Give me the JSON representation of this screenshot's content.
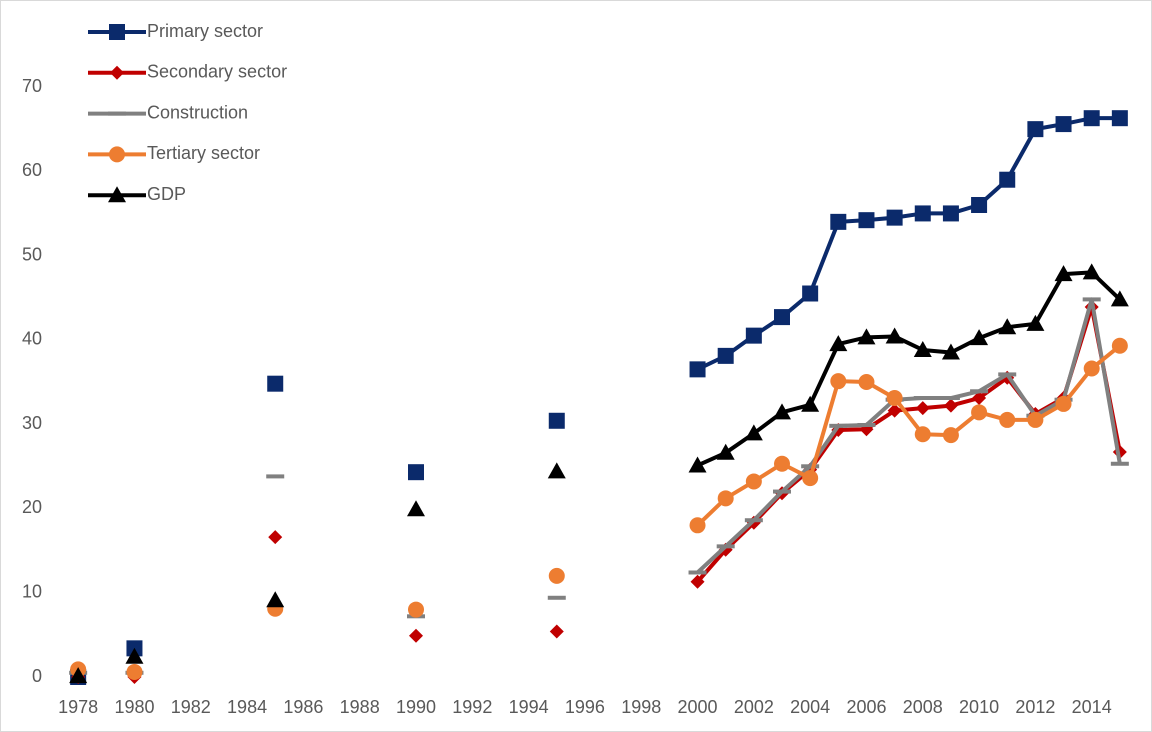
{
  "chart_data": {
    "type": "line",
    "x": [
      1978,
      1979,
      1980,
      1981,
      1982,
      1983,
      1984,
      1985,
      1986,
      1987,
      1988,
      1989,
      1990,
      1991,
      1992,
      1993,
      1994,
      1995,
      1996,
      1997,
      1998,
      1999,
      2000,
      2001,
      2002,
      2003,
      2004,
      2005,
      2006,
      2007,
      2008,
      2009,
      2010,
      2011,
      2012,
      2013,
      2014,
      2015
    ],
    "xlim": [
      1977,
      2016
    ],
    "xticks": [
      1978,
      1980,
      1982,
      1984,
      1986,
      1988,
      1990,
      1992,
      1994,
      1996,
      1998,
      2000,
      2002,
      2004,
      2006,
      2008,
      2010,
      2012,
      2014
    ],
    "ylim": [
      0,
      70
    ],
    "yticks": [
      0,
      10,
      20,
      30,
      40,
      50,
      60,
      70
    ],
    "grid": false,
    "legend": "top-left",
    "series": [
      {
        "name": "Primary sector",
        "color": "#0b2a6b",
        "marker": "square",
        "values": [
          0,
          null,
          3.4,
          null,
          null,
          null,
          null,
          34.8,
          null,
          null,
          null,
          null,
          24.3,
          null,
          null,
          null,
          null,
          30.4,
          null,
          null,
          null,
          null,
          36.5,
          38.1,
          40.5,
          42.7,
          45.5,
          54.0,
          54.2,
          54.5,
          55.0,
          55.0,
          56.0,
          59.0,
          65.0,
          65.6,
          66.3,
          66.3
        ]
      },
      {
        "name": "Secondary sector",
        "color": "#c00000",
        "marker": "diamond",
        "values": [
          0,
          null,
          0,
          null,
          null,
          null,
          null,
          16.6,
          null,
          null,
          null,
          null,
          4.9,
          null,
          null,
          null,
          null,
          5.4,
          null,
          null,
          null,
          null,
          11.3,
          15.1,
          18.3,
          21.8,
          24.6,
          29.3,
          29.4,
          31.6,
          31.9,
          32.2,
          33.1,
          35.5,
          31.2,
          33.1,
          43.9,
          26.7
        ]
      },
      {
        "name": "Construction",
        "color": "#808080",
        "marker": "dash",
        "values": [
          0.5,
          null,
          0.5,
          null,
          null,
          null,
          null,
          23.8,
          null,
          null,
          null,
          null,
          7.2,
          null,
          null,
          null,
          null,
          9.4,
          null,
          null,
          null,
          null,
          12.4,
          15.5,
          18.6,
          22.0,
          25.0,
          29.8,
          29.9,
          32.9,
          33.1,
          33.1,
          33.9,
          35.9,
          31.0,
          32.9,
          44.8,
          25.3
        ]
      },
      {
        "name": "Tertiary sector",
        "color": "#ed7d31",
        "marker": "circle",
        "values": [
          0.9,
          null,
          0.6,
          null,
          null,
          null,
          null,
          8.1,
          null,
          null,
          null,
          null,
          8.0,
          null,
          null,
          null,
          null,
          12.0,
          null,
          null,
          null,
          null,
          18.0,
          21.2,
          23.2,
          25.3,
          23.6,
          35.1,
          35.0,
          33.1,
          28.8,
          28.7,
          31.4,
          30.5,
          30.5,
          32.4,
          36.6,
          39.3
        ]
      },
      {
        "name": "GDP",
        "color": "#000000",
        "marker": "triangle",
        "values": [
          0.1,
          null,
          2.4,
          null,
          null,
          null,
          null,
          9.1,
          null,
          null,
          null,
          null,
          19.9,
          null,
          null,
          null,
          null,
          24.4,
          null,
          null,
          null,
          null,
          25.1,
          26.6,
          28.9,
          31.4,
          32.3,
          39.5,
          40.3,
          40.4,
          38.8,
          38.5,
          40.2,
          41.5,
          41.9,
          47.8,
          48.0,
          44.8
        ]
      }
    ]
  }
}
